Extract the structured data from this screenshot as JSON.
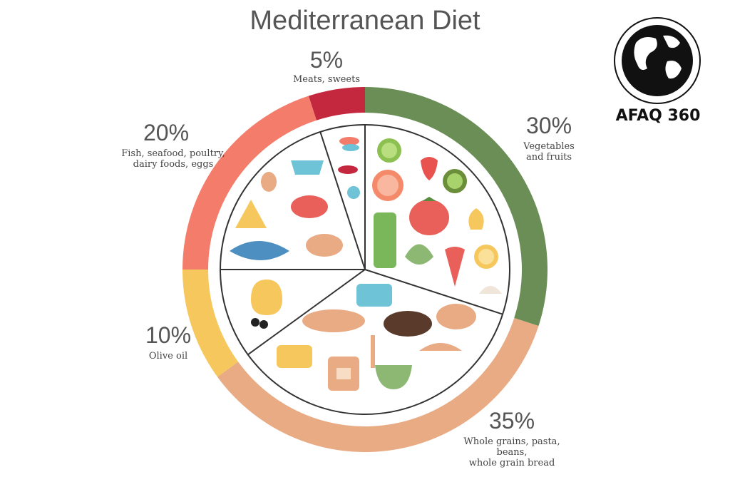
{
  "chart_data": {
    "type": "pie",
    "title": "Mediterranean Diet",
    "slices": [
      {
        "label": "Vegetables\nand fruits",
        "value": 30,
        "value_label": "30%",
        "color": "#6a8e56"
      },
      {
        "label": "Whole grains, pasta, beans,\nwhole grain bread",
        "value": 35,
        "value_label": "35%",
        "color": "#e8ab84"
      },
      {
        "label": "Olive oil",
        "value": 10,
        "value_label": "10%",
        "color": "#f6c75c"
      },
      {
        "label": "Fish, seafood, poultry,\ndairy foods, eggs",
        "value": 20,
        "value_label": "20%",
        "color": "#f47c6b"
      },
      {
        "label": "Meats, sweets",
        "value": 5,
        "value_label": "5%",
        "color": "#c4283f"
      }
    ]
  },
  "brand": {
    "name": "AFAQ 360",
    "icon": "globe-icon"
  }
}
